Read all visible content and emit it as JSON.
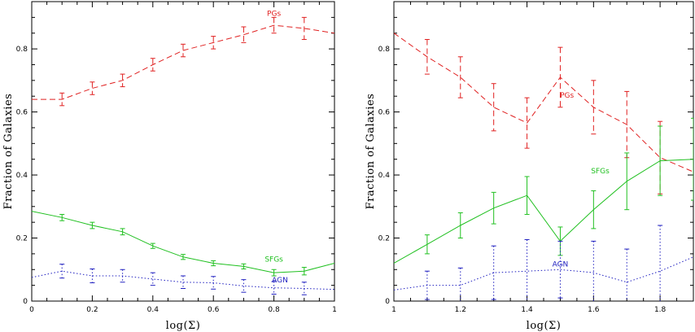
{
  "chart_data": [
    {
      "type": "line",
      "xlabel": "log(Σ)",
      "ylabel": "Fraction of Galaxies",
      "xlim": [
        0,
        1
      ],
      "ylim": [
        0,
        0.95
      ],
      "xticks": [
        0,
        0.2,
        0.4,
        0.6,
        0.8,
        1
      ],
      "xtick_labels": [
        "0",
        "0.2",
        "0.4",
        "0.6",
        "0.8",
        "1"
      ],
      "yticks": [
        0,
        0.2,
        0.4,
        0.6,
        0.8
      ],
      "ytick_labels": [
        "0",
        "0.2",
        "0.4",
        "0.6",
        "0.8"
      ],
      "grid": false,
      "series": [
        {
          "name": "PGs",
          "color": "#e02020",
          "style": "dashed",
          "x": [
            0,
            0.1,
            0.2,
            0.3,
            0.4,
            0.5,
            0.6,
            0.7,
            0.8,
            0.9,
            1.0
          ],
          "y": [
            0.64,
            0.64,
            0.675,
            0.7,
            0.75,
            0.795,
            0.82,
            0.845,
            0.875,
            0.865,
            0.85
          ],
          "err": [
            0,
            0.02,
            0.02,
            0.02,
            0.02,
            0.02,
            0.02,
            0.025,
            0.025,
            0.035,
            0
          ],
          "label_at": [
            0.8,
            0.905
          ]
        },
        {
          "name": "SFGs",
          "color": "#20c020",
          "style": "solid",
          "x": [
            0,
            0.1,
            0.2,
            0.3,
            0.4,
            0.5,
            0.6,
            0.7,
            0.8,
            0.9,
            1.0
          ],
          "y": [
            0.285,
            0.265,
            0.24,
            0.22,
            0.175,
            0.14,
            0.12,
            0.11,
            0.09,
            0.095,
            0.12
          ],
          "err": [
            0,
            0.01,
            0.01,
            0.01,
            0.008,
            0.008,
            0.008,
            0.008,
            0.01,
            0.012,
            0
          ],
          "label_at": [
            0.8,
            0.125
          ]
        },
        {
          "name": "AGN",
          "color": "#2020c0",
          "style": "dotted",
          "x": [
            0,
            0.1,
            0.2,
            0.3,
            0.4,
            0.5,
            0.6,
            0.7,
            0.8,
            0.9,
            1.0
          ],
          "y": [
            0.075,
            0.095,
            0.08,
            0.08,
            0.07,
            0.06,
            0.058,
            0.048,
            0.042,
            0.04,
            0.037
          ],
          "err": [
            0,
            0.022,
            0.022,
            0.02,
            0.02,
            0.02,
            0.02,
            0.02,
            0.02,
            0.02,
            0
          ],
          "label_at": [
            0.82,
            0.06
          ]
        }
      ]
    },
    {
      "type": "line",
      "xlabel": "log(Σ)",
      "ylabel": "Fraction of Galaxies",
      "xlim": [
        1,
        1.9
      ],
      "ylim": [
        0,
        0.95
      ],
      "xticks": [
        1,
        1.2,
        1.4,
        1.6,
        1.8
      ],
      "xtick_labels": [
        "1",
        "1.2",
        "1.4",
        "1.6",
        "1.8"
      ],
      "yticks": [
        0,
        0.2,
        0.4,
        0.6,
        0.8
      ],
      "ytick_labels": [
        "0",
        "0.2",
        "0.4",
        "0.6",
        "0.8"
      ],
      "grid": false,
      "series": [
        {
          "name": "PGs",
          "color": "#e02020",
          "style": "dashed",
          "x": [
            1.0,
            1.1,
            1.2,
            1.3,
            1.4,
            1.5,
            1.6,
            1.7,
            1.8,
            1.9
          ],
          "y": [
            0.85,
            0.775,
            0.71,
            0.615,
            0.565,
            0.71,
            0.615,
            0.56,
            0.455,
            0.41
          ],
          "err": [
            0,
            0.055,
            0.065,
            0.075,
            0.08,
            0.095,
            0.085,
            0.105,
            0.115,
            0
          ],
          "label_at": [
            1.52,
            0.645
          ]
        },
        {
          "name": "SFGs",
          "color": "#20c020",
          "style": "solid",
          "x": [
            1.0,
            1.1,
            1.2,
            1.3,
            1.4,
            1.5,
            1.6,
            1.7,
            1.8,
            1.9
          ],
          "y": [
            0.12,
            0.18,
            0.24,
            0.295,
            0.335,
            0.19,
            0.29,
            0.38,
            0.445,
            0.45
          ],
          "err": [
            0,
            0.03,
            0.04,
            0.05,
            0.06,
            0.045,
            0.06,
            0.09,
            0.11,
            0.13
          ],
          "label_at": [
            1.62,
            0.405
          ]
        },
        {
          "name": "AGN",
          "color": "#2020c0",
          "style": "dotted",
          "x": [
            1.0,
            1.1,
            1.2,
            1.3,
            1.4,
            1.5,
            1.6,
            1.7,
            1.8,
            1.9
          ],
          "y": [
            0.035,
            0.05,
            0.05,
            0.09,
            0.095,
            0.1,
            0.09,
            0.06,
            0.095,
            0.14
          ],
          "err": [
            0,
            0.045,
            0.055,
            0.085,
            0.1,
            0.09,
            0.1,
            0.105,
            0.145,
            0
          ],
          "label_at": [
            1.5,
            0.11
          ]
        }
      ]
    }
  ]
}
